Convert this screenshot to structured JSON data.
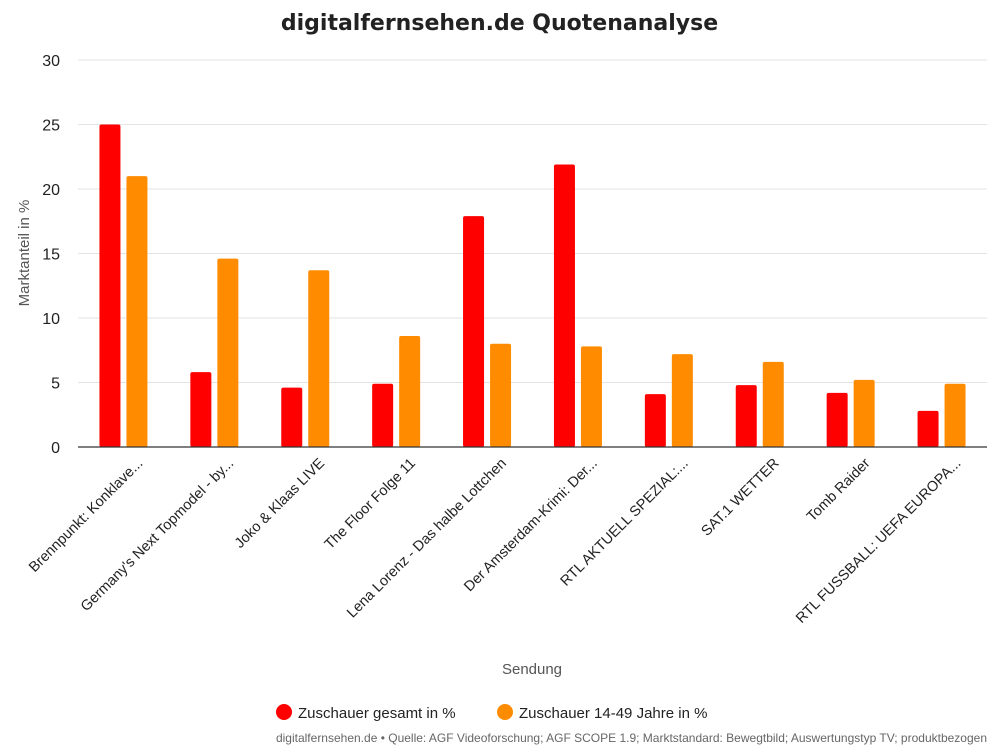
{
  "chart_data": {
    "type": "bar",
    "title": "digitalfernsehen.de Quotenanalyse",
    "xlabel": "Sendung",
    "ylabel": "Marktanteil in %",
    "ylim": [
      0,
      30
    ],
    "yticks": [
      0,
      5,
      10,
      15,
      20,
      25,
      30
    ],
    "grid": true,
    "legend_position": "bottom",
    "categories": [
      "Brennpunkt: Konklave...",
      "Germany's Next Topmodel - by...",
      "Joko & Klaas LIVE",
      "The Floor Folge 11",
      "Lena Lorenz - Das halbe Lottchen",
      "Der Amsterdam-Krimi: Der...",
      "RTL AKTUELL SPEZIAL:...",
      "SAT.1 WETTER",
      "Tomb Raider",
      "RTL FUSSBALL: UEFA EUROPA..."
    ],
    "series": [
      {
        "name": "Zuschauer gesamt in %",
        "color": "#ff0000",
        "values": [
          25.0,
          5.8,
          4.6,
          4.9,
          17.9,
          21.9,
          4.1,
          4.8,
          4.2,
          2.8
        ]
      },
      {
        "name": "Zuschauer 14-49 Jahre in %",
        "color": "#ff8c00",
        "values": [
          21.0,
          14.6,
          13.7,
          8.6,
          8.0,
          7.8,
          7.2,
          6.6,
          5.2,
          4.9
        ]
      }
    ],
    "source": "digitalfernsehen.de • Quelle: AGF Videoforschung; AGF SCOPE 1.9; Marktstandard: Bewegtbild; Auswertungstyp TV; produktbezogen"
  }
}
